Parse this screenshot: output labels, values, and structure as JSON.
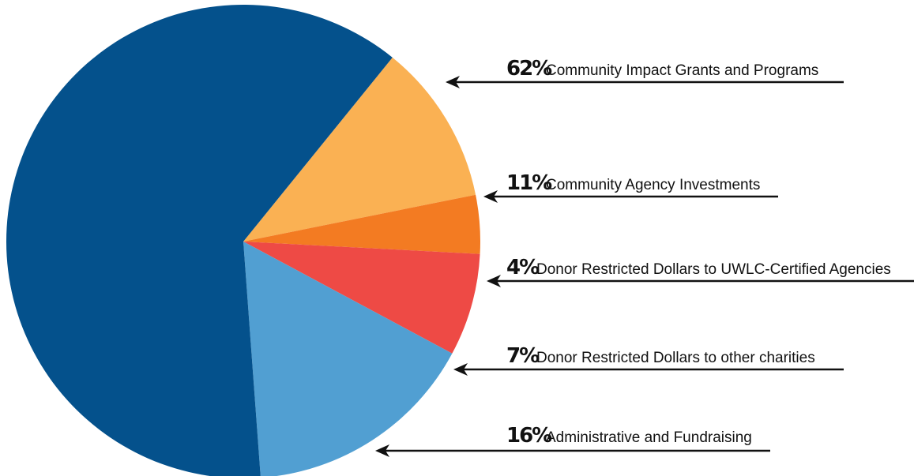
{
  "chart_data": {
    "type": "pie",
    "slices": [
      {
        "percent_label": "62%",
        "label": "Community Impact Grants and Programs",
        "value": 62,
        "color": "#04518C"
      },
      {
        "percent_label": "11%",
        "label": "Community Agency Investments",
        "value": 11,
        "color": "#FAB153"
      },
      {
        "percent_label": "4%",
        "label": "Donor Restricted Dollars to UWLC-Certified Agencies",
        "value": 4,
        "color": "#F37B22"
      },
      {
        "percent_label": "7%",
        "label": "Donor Restricted Dollars to other charities",
        "value": 7,
        "color": "#EE4A45"
      },
      {
        "percent_label": "16%",
        "label": "Administrative and Fundraising",
        "value": 16,
        "color": "#519FD2"
      }
    ],
    "legend": "right"
  }
}
